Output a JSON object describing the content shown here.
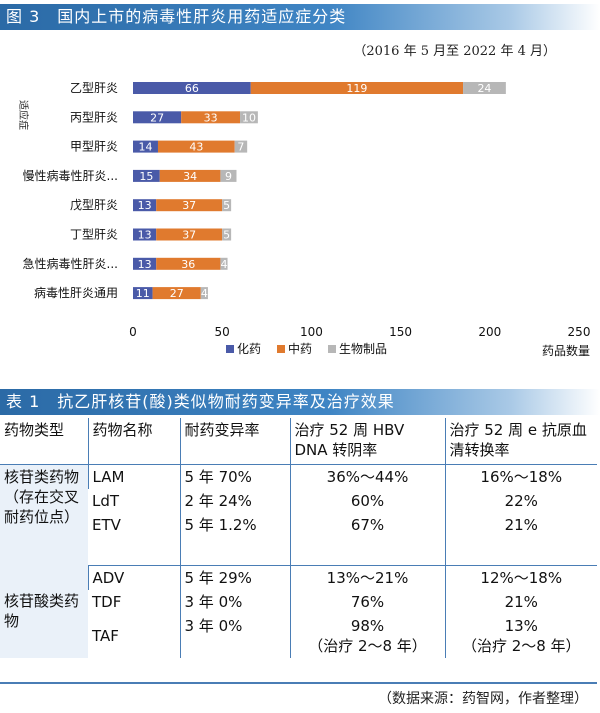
{
  "figure": {
    "banner": "图 3　国内上市的病毒性肝炎用药适应症分类",
    "date_range": "（2016 年 5 月至 2022 年 4 月）"
  },
  "chart_data": {
    "type": "bar",
    "orientation": "horizontal",
    "stacked": true,
    "categories": [
      "乙型肝炎",
      "丙型肝炎",
      "甲型肝炎",
      "慢性病毒性肝炎...",
      "戊型肝炎",
      "丁型肝炎",
      "急性病毒性肝炎...",
      "病毒性肝炎通用"
    ],
    "series": [
      {
        "name": "化药",
        "color": "#4a5aa8",
        "values": [
          66,
          27,
          14,
          15,
          13,
          13,
          13,
          11
        ]
      },
      {
        "name": "中药",
        "color": "#e07a2e",
        "values": [
          119,
          33,
          43,
          34,
          37,
          37,
          36,
          27
        ]
      },
      {
        "name": "生物制品",
        "color": "#b7b7b7",
        "values": [
          24,
          10,
          7,
          9,
          5,
          5,
          4,
          4
        ]
      }
    ],
    "xlabel": "药品数量",
    "ylabel": "适应症",
    "xlim": [
      0,
      250
    ],
    "xticks": [
      0,
      50,
      100,
      150,
      200,
      250
    ],
    "legend": "bottom",
    "grid": false
  },
  "table": {
    "banner": "表 1　抗乙肝核苷(酸)类似物耐药变异率及治疗效果",
    "headers": [
      "药物类型",
      "药物名称",
      "耐药变异率",
      "治疗 52 周 HBV DNA 转阴率",
      "治疗 52 周 e 抗原血清转换率"
    ],
    "groups": [
      {
        "type": "核苷类药物（存在交叉耐药位点）",
        "rows": [
          {
            "name": "LAM",
            "rate": "5 年 70%",
            "dna": "36%～44%",
            "sero": "16%～18%"
          },
          {
            "name": "LdT",
            "rate": "2 年 24%",
            "dna": "60%",
            "sero": "22%"
          },
          {
            "name": "ETV",
            "rate": "5 年 1.2%",
            "dna": "67%",
            "sero": "21%"
          }
        ]
      },
      {
        "type": "核苷酸类药物",
        "rows": [
          {
            "name": "ADV",
            "rate": "5 年 29%",
            "dna": "13%～21%",
            "sero": "12%～18%"
          },
          {
            "name": "TDF",
            "rate": "3 年 0%",
            "dna": "76%",
            "sero": "21%"
          },
          {
            "name": "TAF",
            "rate": "3 年 0%",
            "dna": "98%",
            "dna_note": "（治疗 2～8 年）",
            "sero": "13%",
            "sero_note": "（治疗 2～8 年）"
          }
        ]
      }
    ],
    "source": "（数据来源：药智网，作者整理）"
  }
}
